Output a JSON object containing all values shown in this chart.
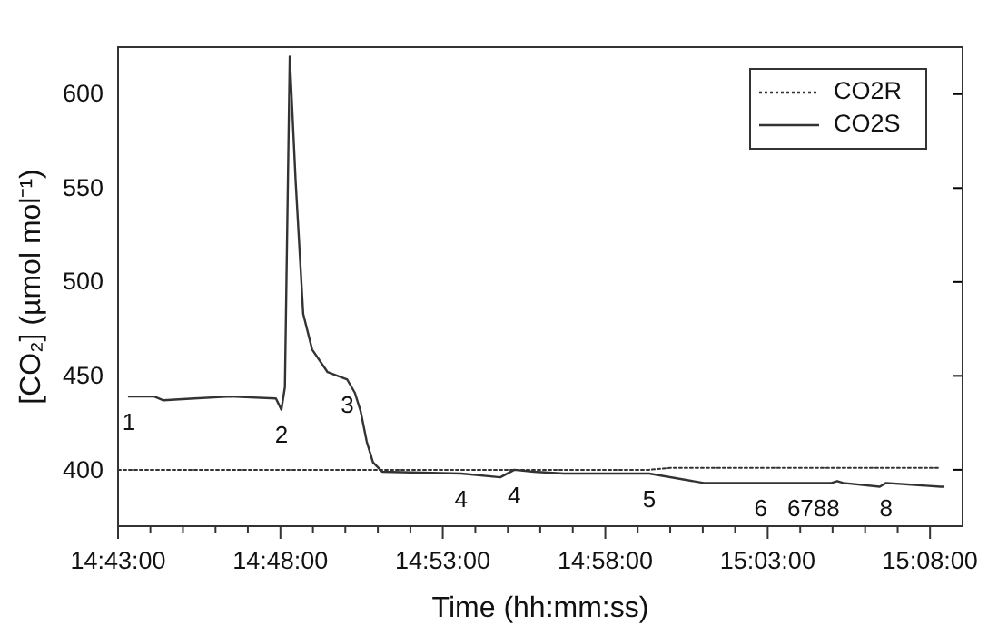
{
  "chart_data": {
    "type": "line",
    "xlabel": "Time (hh:mm:ss)",
    "ylabel": "[CO₂] (µmol mol⁻¹)",
    "xlim": [
      14.7167,
      15.15
    ],
    "xticks": [
      {
        "value": 14.7167,
        "label": "14:43:00"
      },
      {
        "value": 14.7333,
        "label": null
      },
      {
        "value": 14.75,
        "label": null
      },
      {
        "value": 14.7667,
        "label": null
      },
      {
        "value": 14.7833,
        "label": null
      },
      {
        "value": 14.8,
        "label": "14:48:00"
      },
      {
        "value": 14.8167,
        "label": null
      },
      {
        "value": 14.8333,
        "label": null
      },
      {
        "value": 14.85,
        "label": null
      },
      {
        "value": 14.8667,
        "label": null
      },
      {
        "value": 14.8833,
        "label": "14:53:00"
      },
      {
        "value": 14.9,
        "label": null
      },
      {
        "value": 14.9167,
        "label": null
      },
      {
        "value": 14.9333,
        "label": null
      },
      {
        "value": 14.95,
        "label": null
      },
      {
        "value": 14.9667,
        "label": "14:58:00"
      },
      {
        "value": 14.9833,
        "label": null
      },
      {
        "value": 15.0,
        "label": null
      },
      {
        "value": 15.0167,
        "label": null
      },
      {
        "value": 15.0333,
        "label": null
      },
      {
        "value": 15.05,
        "label": "15:03:00"
      },
      {
        "value": 15.0667,
        "label": null
      },
      {
        "value": 15.0833,
        "label": null
      },
      {
        "value": 15.1,
        "label": null
      },
      {
        "value": 15.1167,
        "label": null
      },
      {
        "value": 15.1333,
        "label": "15:08:00"
      }
    ],
    "ylim": [
      370,
      625
    ],
    "yticks": [
      400,
      450,
      500,
      550,
      600
    ],
    "legend": "top right",
    "series": [
      {
        "name": "CO2R",
        "color": "#333333",
        "line_style": "dotted",
        "x": [
          14.7167,
          14.9892,
          15.0,
          15.1387
        ],
        "values": [
          400,
          400,
          401,
          401
        ]
      },
      {
        "name": "CO2S",
        "color": "#333333",
        "line_style": "solid",
        "x": [
          14.7223,
          14.7353,
          14.74,
          14.7557,
          14.7743,
          14.7977,
          14.8005,
          14.8023,
          14.8048,
          14.8078,
          14.8117,
          14.8163,
          14.8242,
          14.8343,
          14.8382,
          14.8412,
          14.8443,
          14.8475,
          14.8522,
          14.8927,
          14.9128,
          14.92,
          14.93,
          14.9455,
          14.9892,
          15.0172,
          15.0465,
          15.0735,
          15.0827,
          15.0857,
          15.0888,
          15.1075,
          15.1107,
          15.1387,
          15.1402
        ],
        "values": [
          439,
          439,
          437,
          438,
          439,
          438,
          432,
          444,
          620,
          554,
          483,
          464,
          452,
          448,
          441,
          431,
          415,
          404,
          399,
          398,
          396,
          400,
          399,
          398,
          398,
          393,
          393,
          393,
          393,
          394,
          393,
          391,
          393,
          391,
          391
        ]
      }
    ],
    "annotations": [
      {
        "text": "1",
        "x": 14.7223,
        "y": 439
      },
      {
        "text": "2",
        "x": 14.8005,
        "y": 432
      },
      {
        "text": "3",
        "x": 14.8343,
        "y": 448
      },
      {
        "text": "4",
        "x": 14.8927,
        "y": 398
      },
      {
        "text": "4",
        "x": 14.92,
        "y": 400
      },
      {
        "text": "5",
        "x": 14.9892,
        "y": 398
      },
      {
        "text": "6",
        "x": 15.0465,
        "y": 393
      },
      {
        "text": "6788",
        "x": 15.0735,
        "y": 393
      },
      {
        "text": "8",
        "x": 15.1107,
        "y": 393
      }
    ]
  }
}
